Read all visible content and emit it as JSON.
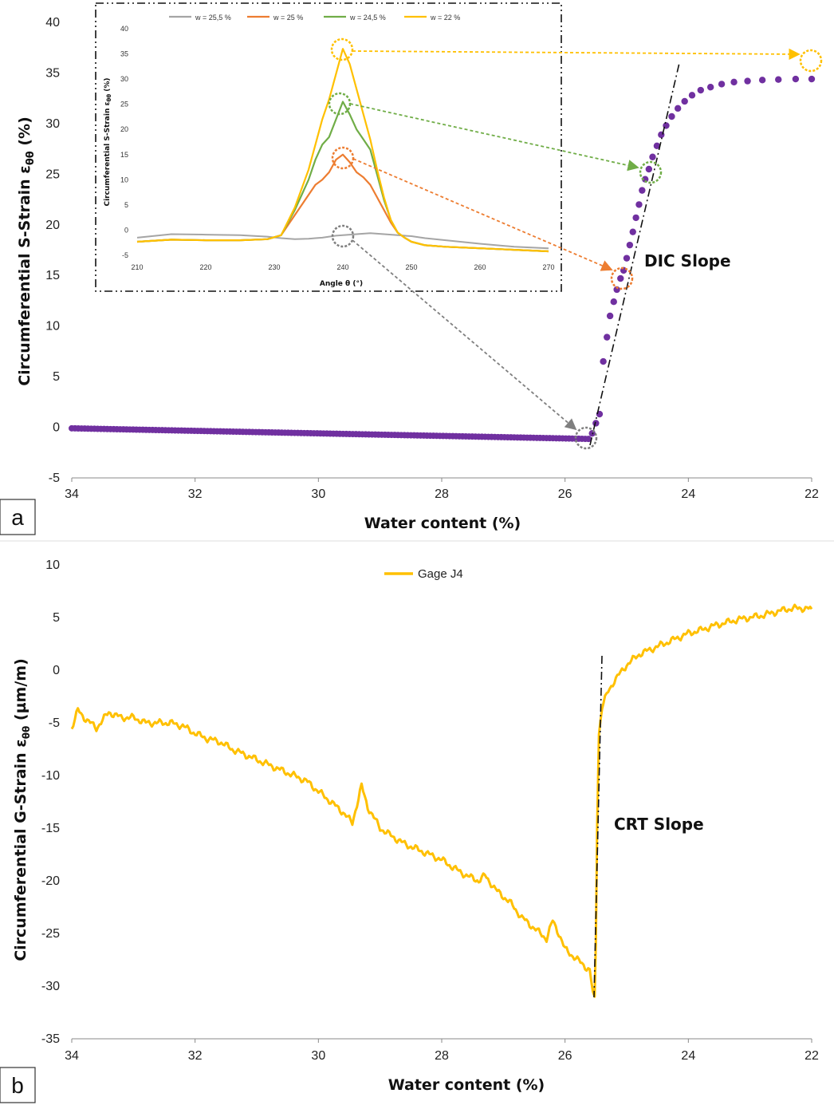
{
  "chart_data": [
    {
      "panel": "a",
      "type": "scatter",
      "xlabel": "Water content (%)",
      "ylabel": "Circumferential S-Strain ε",
      "ylabel_sub": "θθ",
      "ylabel_unit": " (%)",
      "xlim": [
        34,
        22
      ],
      "ylim": [
        -5,
        40
      ],
      "x_reversed": true,
      "xticks": [
        "34",
        "32",
        "30",
        "28",
        "26",
        "24",
        "22"
      ],
      "yticks": [
        "-5",
        "0",
        "5",
        "10",
        "15",
        "20",
        "25",
        "30",
        "35",
        "40"
      ],
      "series_color": "#7030A0",
      "flat_segment": {
        "x_start": 34.0,
        "x_end": 25.62,
        "y_start": -0.1,
        "y_end": -1.15
      },
      "points": [
        {
          "x": 25.56,
          "y": -0.6
        },
        {
          "x": 25.5,
          "y": 0.4
        },
        {
          "x": 25.44,
          "y": 1.3
        },
        {
          "x": 25.38,
          "y": 6.5
        },
        {
          "x": 25.32,
          "y": 8.9
        },
        {
          "x": 25.27,
          "y": 11.0
        },
        {
          "x": 25.21,
          "y": 12.4
        },
        {
          "x": 25.16,
          "y": 13.6
        },
        {
          "x": 25.1,
          "y": 14.7
        },
        {
          "x": 25.05,
          "y": 15.5
        },
        {
          "x": 25.0,
          "y": 16.7
        },
        {
          "x": 24.95,
          "y": 18.0
        },
        {
          "x": 24.9,
          "y": 19.3
        },
        {
          "x": 24.85,
          "y": 20.7
        },
        {
          "x": 24.8,
          "y": 22.0
        },
        {
          "x": 24.75,
          "y": 23.4
        },
        {
          "x": 24.7,
          "y": 24.5
        },
        {
          "x": 24.64,
          "y": 25.5
        },
        {
          "x": 24.58,
          "y": 26.7
        },
        {
          "x": 24.51,
          "y": 27.8
        },
        {
          "x": 24.44,
          "y": 28.9
        },
        {
          "x": 24.36,
          "y": 29.8
        },
        {
          "x": 24.27,
          "y": 30.7
        },
        {
          "x": 24.17,
          "y": 31.5
        },
        {
          "x": 24.06,
          "y": 32.2
        },
        {
          "x": 23.94,
          "y": 32.8
        },
        {
          "x": 23.8,
          "y": 33.3
        },
        {
          "x": 23.64,
          "y": 33.6
        },
        {
          "x": 23.46,
          "y": 33.9
        },
        {
          "x": 23.26,
          "y": 34.1
        },
        {
          "x": 23.04,
          "y": 34.2
        },
        {
          "x": 22.8,
          "y": 34.3
        },
        {
          "x": 22.54,
          "y": 34.35
        },
        {
          "x": 22.26,
          "y": 34.4
        },
        {
          "x": 22.0,
          "y": 34.4
        }
      ],
      "annotation": "DIC Slope",
      "inset": {
        "type": "line",
        "xlabel": "Angle θ (°)",
        "ylabel": "Circumferential S-Strain ε",
        "ylabel_sub": "θθ",
        "ylabel_unit": " (%)",
        "xlim": [
          210,
          270
        ],
        "ylim": [
          -5,
          40
        ],
        "xticks": [
          "210",
          "220",
          "230",
          "240",
          "250",
          "260",
          "270"
        ],
        "yticks": [
          "-5",
          "0",
          "5",
          "10",
          "15",
          "20",
          "25",
          "30",
          "35",
          "40"
        ],
        "x": [
          210,
          215,
          220,
          225,
          229,
          231,
          233,
          235,
          236,
          237,
          238,
          239,
          240,
          241,
          242,
          243,
          244,
          245,
          246,
          247,
          248,
          249,
          250,
          252,
          255,
          260,
          265,
          270
        ],
        "series": [
          {
            "name": "w = 25,5 %",
            "color": "#A5A5A5",
            "values": [
              -1.5,
              -0.8,
              -0.9,
              -1.0,
              -1.3,
              -1.6,
              -1.8,
              -1.7,
              -1.6,
              -1.5,
              -1.3,
              -1.1,
              -1.0,
              -0.9,
              -0.8,
              -0.7,
              -0.6,
              -0.7,
              -0.8,
              -0.9,
              -1.0,
              -1.1,
              -1.2,
              -1.6,
              -2.0,
              -2.7,
              -3.3,
              -3.6
            ]
          },
          {
            "name": "w = 25 %",
            "color": "#ED7D31",
            "values": [
              -2.3,
              -1.9,
              -2.0,
              -2.0,
              -1.8,
              -1.0,
              3.0,
              7.0,
              9.0,
              10.0,
              11.5,
              14.0,
              15.0,
              13.5,
              11.5,
              10.5,
              9.0,
              6.5,
              4.0,
              1.5,
              -0.5,
              -1.5,
              -2.3,
              -3.0,
              -3.3,
              -3.6,
              -3.9,
              -4.2
            ]
          },
          {
            "name": "w = 24,5 %",
            "color": "#70AD47",
            "values": [
              -2.3,
              -1.9,
              -2.0,
              -2.0,
              -1.8,
              -1.0,
              4.0,
              10.0,
              14.0,
              17.0,
              18.5,
              22.0,
              25.5,
              23.0,
              20.0,
              18.0,
              16.0,
              11.0,
              6.0,
              2.0,
              -0.5,
              -1.5,
              -2.3,
              -3.0,
              -3.3,
              -3.6,
              -3.9,
              -4.2
            ]
          },
          {
            "name": "w = 22 %",
            "color": "#FFC000",
            "values": [
              -2.3,
              -1.9,
              -2.0,
              -2.0,
              -1.8,
              -1.0,
              4.5,
              12.0,
              17.0,
              22.0,
              26.0,
              31.0,
              36.0,
              33.0,
              28.0,
              23.0,
              18.0,
              12.0,
              6.5,
              2.0,
              -0.5,
              -1.5,
              -2.3,
              -3.0,
              -3.3,
              -3.6,
              -3.9,
              -4.2
            ]
          }
        ]
      }
    },
    {
      "panel": "b",
      "type": "line",
      "xlabel": "Water content (%)",
      "ylabel": "Circumferential G-Strain ε",
      "ylabel_sub": "θθ",
      "ylabel_unit": " (µm/m)",
      "xlim": [
        34,
        22
      ],
      "ylim": [
        -35,
        10
      ],
      "x_reversed": true,
      "xticks": [
        "34",
        "32",
        "30",
        "28",
        "26",
        "24",
        "22"
      ],
      "yticks": [
        "-35",
        "-30",
        "-25",
        "-20",
        "-15",
        "-10",
        "-5",
        "0",
        "5",
        "10"
      ],
      "series": [
        {
          "name": "Gage J4",
          "color": "#FFC000",
          "x": [
            34.0,
            33.9,
            33.8,
            33.6,
            33.4,
            33.2,
            33.0,
            32.8,
            32.6,
            32.4,
            32.2,
            32.0,
            31.8,
            31.6,
            31.4,
            31.2,
            31.0,
            30.8,
            30.6,
            30.4,
            30.2,
            30.0,
            29.8,
            29.6,
            29.45,
            29.3,
            29.2,
            29.0,
            28.8,
            28.6,
            28.4,
            28.2,
            28.0,
            27.8,
            27.6,
            27.4,
            27.3,
            27.1,
            26.9,
            26.7,
            26.5,
            26.3,
            26.2,
            26.1,
            26.0,
            25.9,
            25.8,
            25.7,
            25.6,
            25.55,
            25.52,
            25.5,
            25.48,
            25.45,
            25.4,
            25.3,
            25.2,
            25.0,
            24.8,
            24.6,
            24.4,
            24.2,
            24.0,
            23.8,
            23.6,
            23.4,
            23.2,
            23.0,
            22.8,
            22.6,
            22.4,
            22.2,
            22.0
          ],
          "values": [
            -5.5,
            -3.8,
            -4.5,
            -5.5,
            -4.0,
            -4.5,
            -4.5,
            -5.0,
            -5.0,
            -5.0,
            -5.3,
            -6.0,
            -6.5,
            -6.8,
            -7.5,
            -8.0,
            -8.5,
            -9.0,
            -9.5,
            -10.0,
            -10.5,
            -11.5,
            -12.5,
            -13.5,
            -14.5,
            -11.0,
            -13.0,
            -15.0,
            -15.8,
            -16.5,
            -17.0,
            -17.5,
            -18.0,
            -18.8,
            -19.5,
            -20.0,
            -19.5,
            -21.0,
            -22.0,
            -23.5,
            -24.5,
            -25.5,
            -23.8,
            -25.0,
            -26.5,
            -27.0,
            -27.5,
            -28.0,
            -28.5,
            -30.5,
            -31.0,
            -26.0,
            -15.0,
            -6.0,
            -3.5,
            -2.0,
            -1.0,
            0.5,
            1.5,
            2.0,
            2.5,
            3.0,
            3.5,
            3.8,
            4.2,
            4.5,
            4.8,
            5.0,
            5.2,
            5.5,
            5.8,
            5.9,
            5.8
          ]
        }
      ],
      "annotation": "CRT Slope"
    }
  ],
  "panel_labels": [
    "a",
    "b"
  ]
}
